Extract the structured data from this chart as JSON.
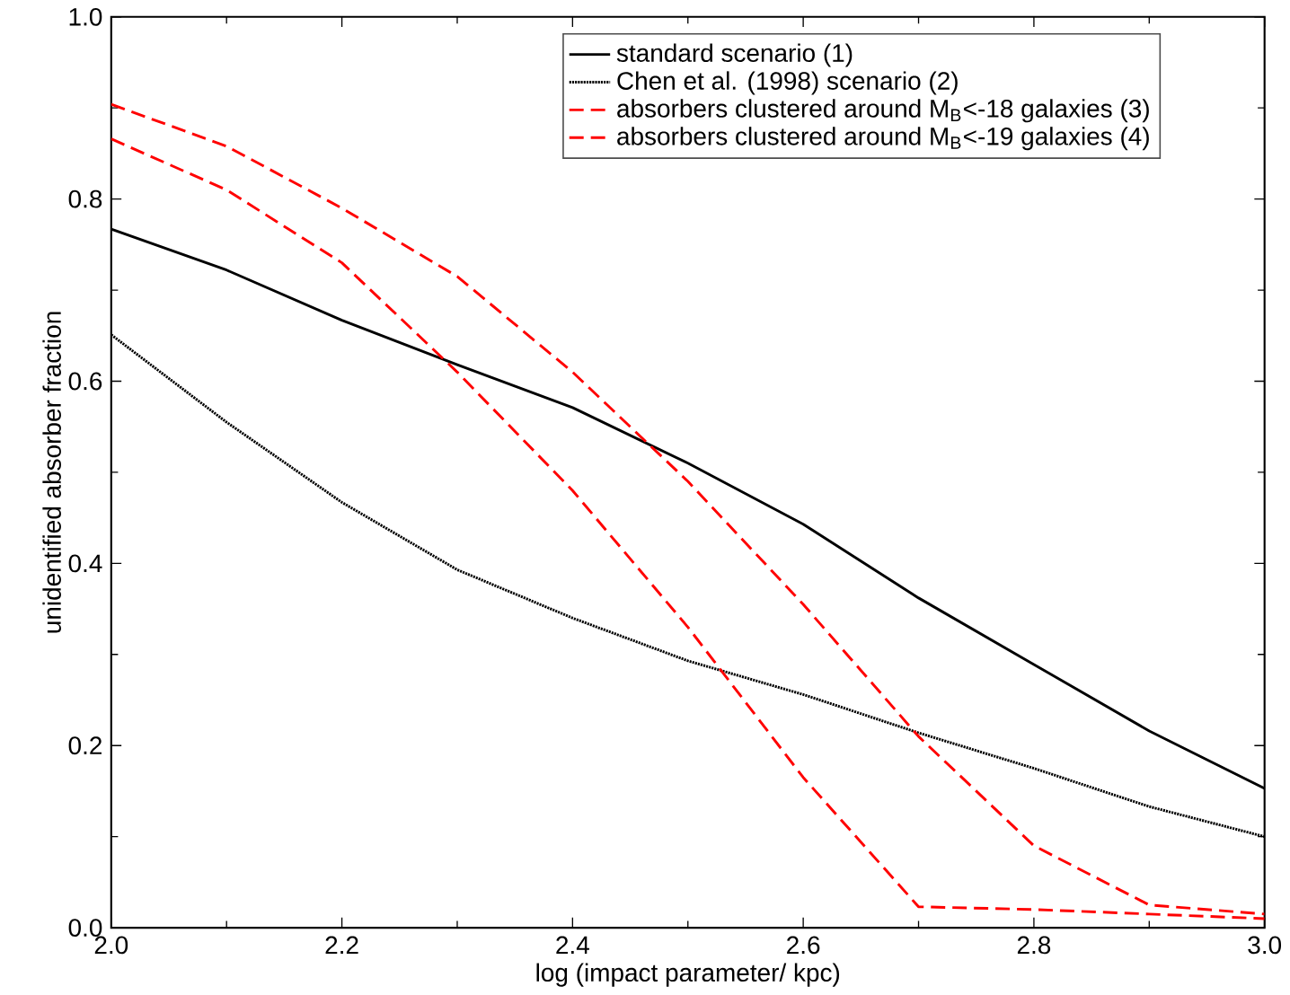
{
  "chart_data": {
    "type": "line",
    "xlabel": "log (impact parameter/ kpc)",
    "ylabel": "unidentified absorber fraction",
    "x": [
      2.0,
      2.1,
      2.2,
      2.3,
      2.4,
      2.5,
      2.6,
      2.7,
      2.8,
      2.9,
      3.0
    ],
    "series": [
      {
        "name": "standard scenario (1)",
        "color": "#000000",
        "line_style": "solid",
        "values": [
          0.767,
          0.722,
          0.667,
          0.618,
          0.571,
          0.51,
          0.443,
          0.362,
          0.289,
          0.216,
          0.153
        ]
      },
      {
        "name": "Chen et al. (1998) scenario (2)",
        "color": "#000000",
        "line_style": "dotted",
        "values": [
          0.651,
          0.555,
          0.467,
          0.393,
          0.34,
          0.293,
          0.256,
          0.214,
          0.175,
          0.133,
          0.1
        ]
      },
      {
        "name": "absorbers clustered around M$_{B}$<-18 galaxies (3)",
        "color": "#ff0000",
        "line_style": "dashed",
        "values": [
          0.866,
          0.81,
          0.73,
          0.61,
          0.48,
          0.33,
          0.165,
          0.023,
          0.02,
          0.015,
          0.01
        ]
      },
      {
        "name": "absorbers clustered around M$_{B}$<-19 galaxies (4)",
        "color": "#ff0000",
        "line_style": "dashed",
        "values": [
          0.904,
          0.858,
          0.79,
          0.715,
          0.61,
          0.49,
          0.355,
          0.21,
          0.09,
          0.025,
          0.015
        ]
      }
    ],
    "xlim": [
      2.0,
      3.0
    ],
    "ylim": [
      0.0,
      1.0
    ],
    "xticks": [
      {
        "value": 2.0,
        "label": "2.0"
      },
      {
        "value": 2.2,
        "label": "2.2"
      },
      {
        "value": 2.4,
        "label": "2.4"
      },
      {
        "value": 2.6,
        "label": "2.6"
      },
      {
        "value": 2.8,
        "label": "2.8"
      },
      {
        "value": 3.0,
        "label": "3.0"
      }
    ],
    "yticks": [
      {
        "value": 0.0,
        "label": "0.0"
      },
      {
        "value": 0.2,
        "label": "0.2"
      },
      {
        "value": 0.4,
        "label": "0.4"
      },
      {
        "value": 0.6,
        "label": "0.6"
      },
      {
        "value": 0.8,
        "label": "0.8"
      },
      {
        "value": 1.0,
        "label": "1.0"
      }
    ],
    "grid": false,
    "legend": "top right",
    "marker": "none"
  }
}
